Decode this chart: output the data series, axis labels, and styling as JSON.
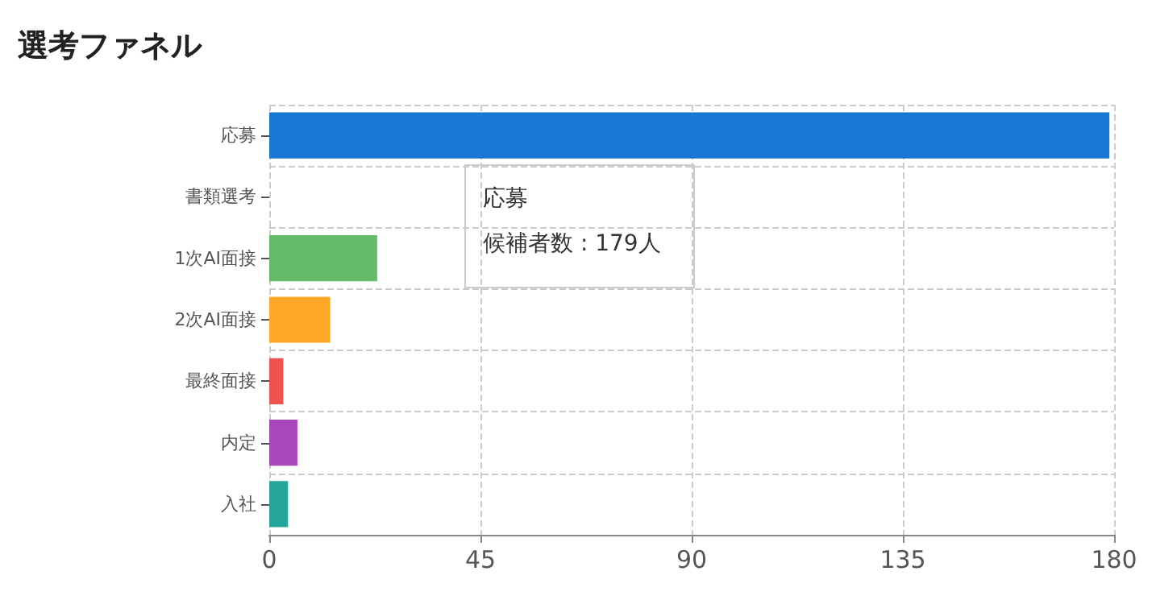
{
  "chart_data": {
    "type": "bar",
    "title": "選考ファネル",
    "orientation": "horizontal",
    "categories": [
      "応募",
      "書類選考",
      "1次AI面接",
      "2次AI面接",
      "最終面接",
      "内定",
      "入社"
    ],
    "values": [
      179,
      null,
      23,
      13,
      3,
      6,
      4
    ],
    "colors": [
      "#1976d2",
      "#42a5f5",
      "#66bb6a",
      "#ffa726",
      "#ef5350",
      "#ab47bc",
      "#26a69a"
    ],
    "xlim": [
      0,
      180
    ],
    "xticks": [
      0,
      45,
      90,
      135,
      180
    ],
    "grid": true,
    "annotations": [
      "応募",
      "候補者数 : 179人"
    ]
  }
}
